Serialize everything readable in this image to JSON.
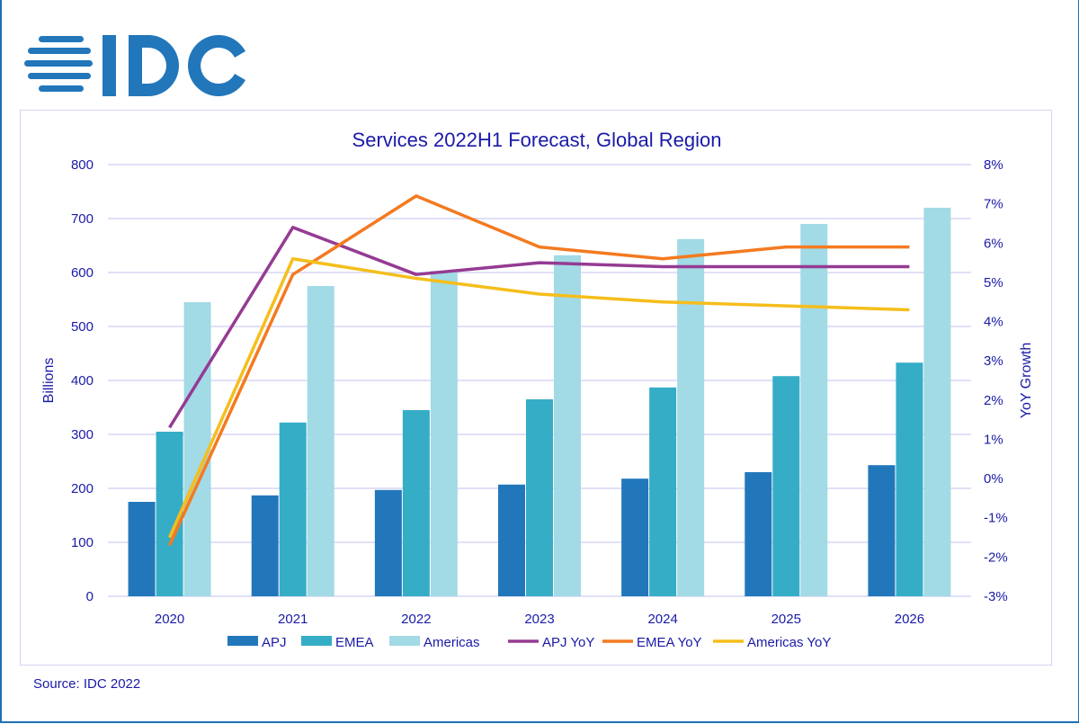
{
  "logo_text": "IDC",
  "source": "Source: IDC 2022",
  "chart_data": {
    "type": "bar+line",
    "title": "Services 2022H1 Forecast, Global Region",
    "categories": [
      "2020",
      "2021",
      "2022",
      "2023",
      "2024",
      "2025",
      "2026"
    ],
    "ylabel": "Billions",
    "y2label": "YoY Growth",
    "ylim": [
      0,
      800
    ],
    "yticks": [
      "0",
      "100",
      "200",
      "300",
      "400",
      "500",
      "600",
      "700",
      "800"
    ],
    "y2lim": [
      -3,
      8
    ],
    "y2ticks": [
      "-3%",
      "-2%",
      "-1%",
      "0%",
      "1%",
      "2%",
      "3%",
      "4%",
      "5%",
      "6%",
      "7%",
      "8%"
    ],
    "grid": true,
    "legend": "bottom",
    "bar_series": [
      {
        "name": "APJ",
        "color": "#2277BB",
        "values": [
          175,
          187,
          197,
          207,
          218,
          230,
          243
        ]
      },
      {
        "name": "EMEA",
        "color": "#36ADC7",
        "values": [
          305,
          322,
          345,
          365,
          387,
          408,
          433
        ]
      },
      {
        "name": "Americas",
        "color": "#A2DAE5",
        "values": [
          545,
          575,
          603,
          632,
          662,
          690,
          720
        ]
      }
    ],
    "line_series": [
      {
        "name": "APJ YoY",
        "color": "#953B93",
        "values": [
          1.3,
          6.4,
          5.2,
          5.5,
          5.4,
          5.4,
          5.4
        ]
      },
      {
        "name": "EMEA YoY",
        "color": "#F47A20",
        "values": [
          -1.7,
          5.2,
          7.2,
          5.9,
          5.6,
          5.9,
          5.9
        ]
      },
      {
        "name": "Americas YoY",
        "color": "#F5BE1C",
        "values": [
          -1.5,
          5.6,
          5.1,
          4.7,
          4.5,
          4.4,
          4.3
        ]
      }
    ]
  }
}
